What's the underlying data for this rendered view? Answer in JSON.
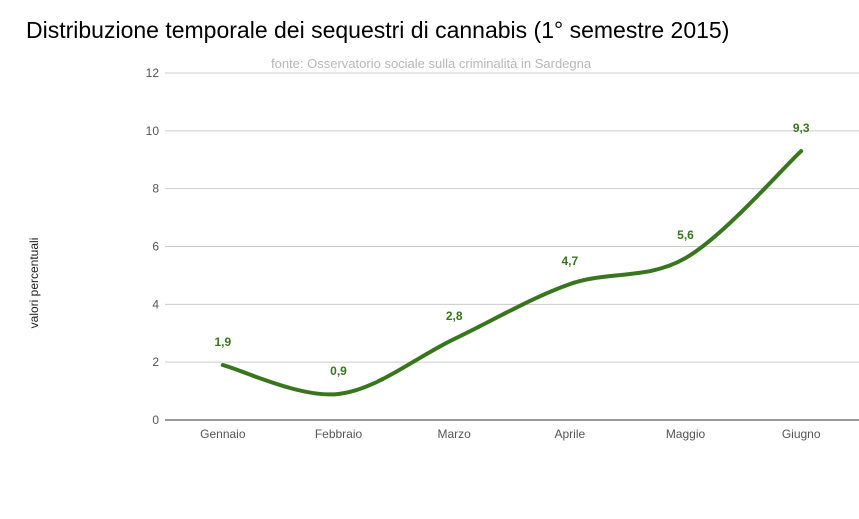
{
  "chart_data": {
    "type": "line",
    "title": "Distribuzione temporale dei sequestri di cannabis (1° semestre  2015)",
    "subtitle": "fonte: Osservatorio sociale sulla criminalità in Sardegna",
    "ylabel": "valori percentuali",
    "xlabel": "",
    "categories": [
      "Gennaio",
      "Febbraio",
      "Marzo",
      "Aprile",
      "Maggio",
      "Giugno"
    ],
    "series": [
      {
        "values": [
          1.9,
          0.9,
          2.8,
          4.7,
          5.6,
          9.3
        ],
        "data_labels": [
          "1,9",
          "0,9",
          "2,8",
          "4,7",
          "5,6",
          "9,3"
        ]
      }
    ],
    "ylim": [
      0,
      12
    ],
    "yticks": [
      0,
      2,
      4,
      6,
      8,
      10,
      12
    ],
    "grid": true,
    "smooth": true,
    "legend": "none",
    "colors": {
      "line": "#38761d",
      "grid": "#cccccc",
      "axis": "#333333"
    }
  }
}
